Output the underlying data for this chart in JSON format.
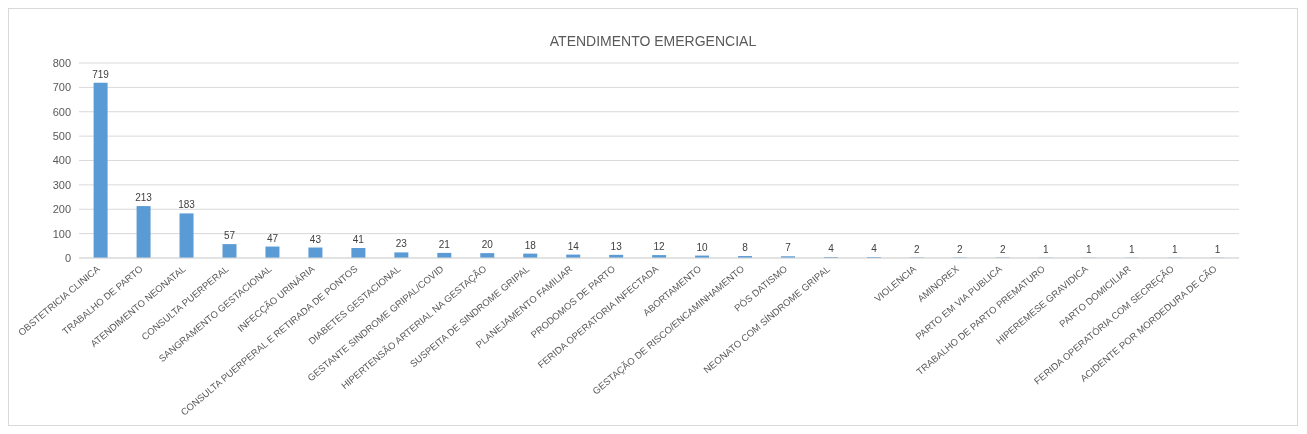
{
  "chart_data": {
    "type": "bar",
    "title": "ATENDIMENTO EMERGENCIAL",
    "categories": [
      "OBSTETRICIA CLINICA",
      "TRABALHO DE PARTO",
      "ATENDIMENTO NEONATAL",
      "CONSULTA PUERPERAL",
      "SANGRAMENTO GESTACIONAL",
      "INFECÇÃO URINÁRIA",
      "CONSULTA PUERPERAL E RETIRADA DE PONTOS",
      "DIABETES GESTACIONAL",
      "GESTANTE SINDROME GRIPAL/COVID",
      "HIPERTENSÃO ARTERIAL NA GESTAÇÃO",
      "SUSPEITA DE SINDROME GRIPAL",
      "PLANEJAMENTO FAMILIAR",
      "PRODOMOS DE PARTO",
      "FERIDA OPERATORIA INFECTADA",
      "ABORTAMENTO",
      "GESTAÇÃO DE RISCO/ENCAMINHAMENTO",
      "PÓS DATISMO",
      "NEONATO COM SÍNDROME GRIPAL",
      null,
      "VIOLENCIA",
      "AMINOREX",
      "PARTO EM VIA PUBLICA",
      "TRABALHO DE PARTO PREMATURO",
      "HIPEREMESE GRAVIDICA",
      "PARTO DOMICILIAR",
      "FERIDA OPERATÓRIA COM SECREÇÃO",
      "ACIDENTE POR MORDEDURA DE CÃO"
    ],
    "values": [
      719,
      213,
      183,
      57,
      47,
      43,
      41,
      23,
      21,
      20,
      18,
      14,
      13,
      12,
      10,
      8,
      7,
      4,
      4,
      2,
      2,
      2,
      1,
      1,
      1,
      1,
      1
    ],
    "color": "#5b9bd5",
    "ylim": [
      0,
      800
    ],
    "yticks": [
      0,
      100,
      200,
      300,
      400,
      500,
      600,
      700,
      800
    ],
    "grid": "y",
    "data_labels": true
  }
}
